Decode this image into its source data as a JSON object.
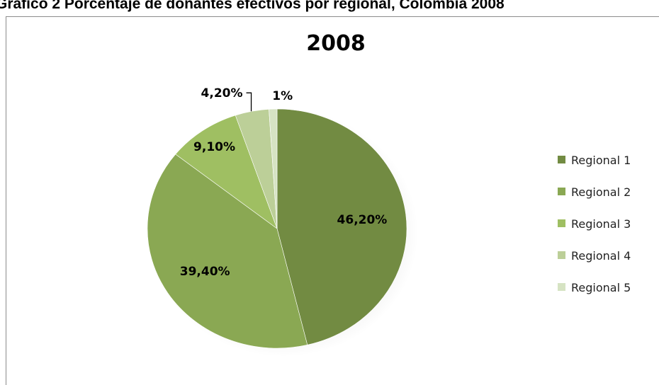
{
  "figure_caption": "Grafico 2 Porcentaje de donantes efectivos por regional, Colombia 2008",
  "chart_data": {
    "type": "pie",
    "title": "2008",
    "categories": [
      "Regional 1",
      "Regional 2",
      "Regional 3",
      "Regional 4",
      "Regional 5"
    ],
    "values": [
      46.2,
      39.4,
      9.1,
      4.2,
      1.0
    ],
    "data_labels": [
      "46,20%",
      "39,40%",
      "9,10%",
      "4,20%",
      "1%"
    ],
    "colors": [
      "#728b42",
      "#8aa853",
      "#9fbf62",
      "#bccf98",
      "#d6e3c3"
    ],
    "legend_position": "right"
  }
}
